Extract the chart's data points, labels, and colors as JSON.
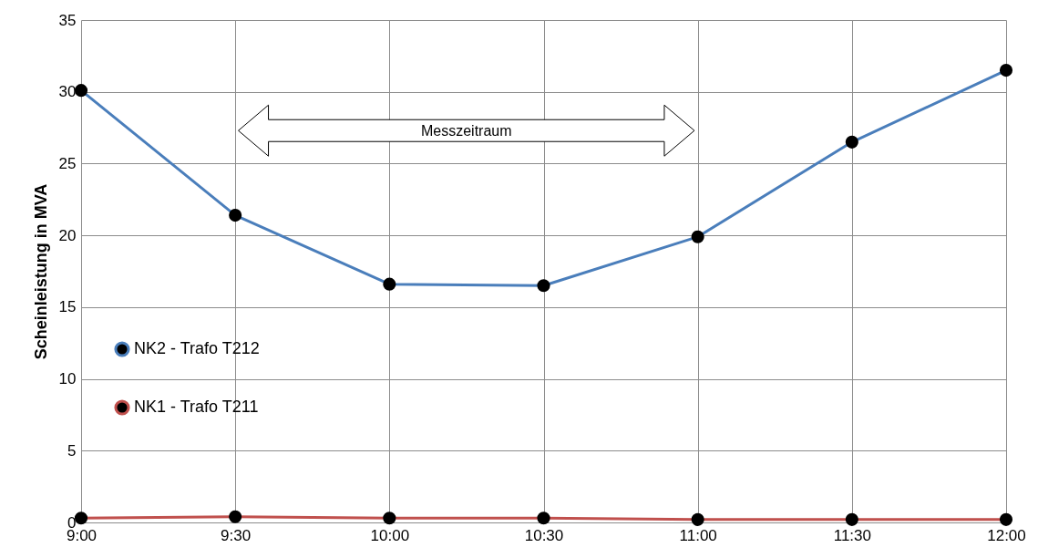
{
  "chart_data": {
    "type": "line",
    "ylabel": "Scheinleistung in MVA",
    "x": [
      9,
      9.5,
      10,
      10.5,
      11,
      11.5,
      12
    ],
    "series": [
      {
        "name": "NK2 - Trafo T212",
        "color": "#4a7ebb",
        "values": [
          30.1,
          21.4,
          16.6,
          16.5,
          19.9,
          26.5,
          31.5
        ]
      },
      {
        "name": "NK1 - Trafo T211",
        "color": "#c0504d",
        "values": [
          0.3,
          0.4,
          0.3,
          0.3,
          0.2,
          0.2,
          0.2
        ]
      }
    ],
    "xlim": [
      9,
      12
    ],
    "xticks": [
      {
        "value": 9,
        "label": "9:00"
      },
      {
        "value": 9.5,
        "label": "9:30"
      },
      {
        "value": 10,
        "label": "10:00"
      },
      {
        "value": 10.5,
        "label": "10:30"
      },
      {
        "value": 11,
        "label": "11:00"
      },
      {
        "value": 11.5,
        "label": "11:30"
      },
      {
        "value": 12,
        "label": "12:00"
      }
    ],
    "ylim": [
      0,
      35
    ],
    "yticks": [
      0,
      5,
      10,
      15,
      20,
      25,
      30,
      35
    ],
    "grid": true,
    "legend": "left",
    "marker": "circle",
    "line_style": "solid",
    "annotations": [
      "Messzeitraum"
    ]
  }
}
